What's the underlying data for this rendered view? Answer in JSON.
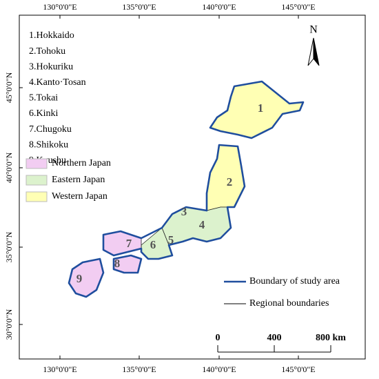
{
  "longitude_labels": [
    "130°0'0\"E",
    "135°0'0\"E",
    "140°0'0\"E",
    "145°0'0\"E"
  ],
  "latitude_labels": [
    "45°0'0\"N",
    "40°0'0\"N",
    "35°0'0\"N",
    "30°0'0\"N"
  ],
  "regions": [
    "1.Hokkaido",
    "2.Tohoku",
    "3.Hokuriku",
    "4.Kanto·Tosan",
    "5.Tokai",
    "6.Kinki",
    "7.Chugoku",
    "8.Shikoku",
    "9.Kyushu"
  ],
  "legend": {
    "zones": [
      {
        "label": "Northern Japan",
        "color": "#f2cdf2"
      },
      {
        "label": "Eastern Japan",
        "color": "#dcf2cd"
      },
      {
        "label": "Western Japan",
        "color": "#ffffb4"
      }
    ],
    "lines": [
      {
        "label": "Boundary of study area",
        "color": "#1f4e9e"
      },
      {
        "label": "Regional boundaries",
        "color": "#000000"
      }
    ]
  },
  "map_labels": [
    "1",
    "2",
    "3",
    "4",
    "5",
    "6",
    "7",
    "8",
    "9"
  ],
  "north_label": "N",
  "scale_labels": [
    "0",
    "400",
    "800 km"
  ]
}
